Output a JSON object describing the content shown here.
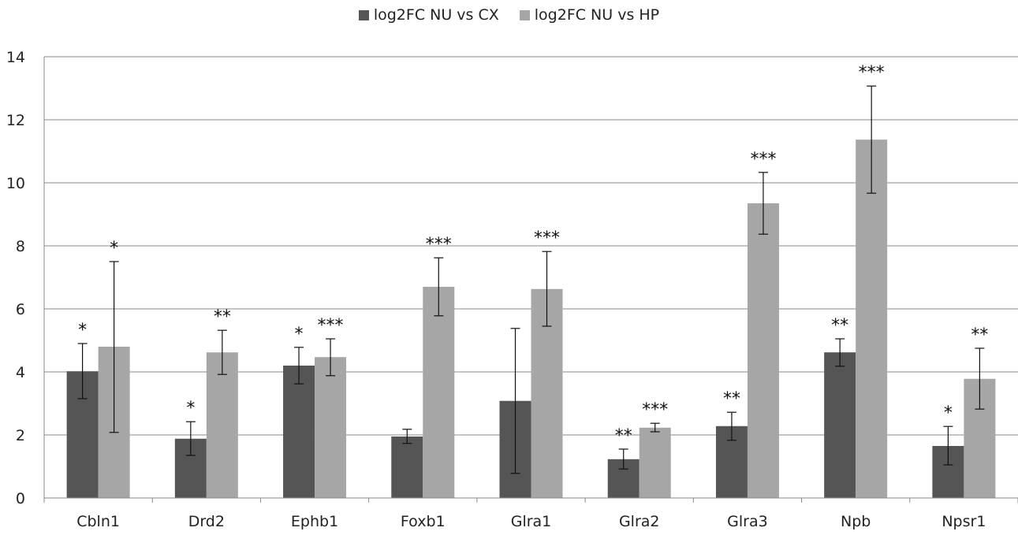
{
  "chart_data": {
    "type": "bar",
    "categories": [
      "Cbln1",
      "Drd2",
      "Ephb1",
      "Foxb1",
      "Glra1",
      "Glra2",
      "Glra3",
      "Npb",
      "Npsr1"
    ],
    "series": [
      {
        "name": "log2FC NU vs CX",
        "color": "#555555",
        "values": [
          4.02,
          1.88,
          4.2,
          1.95,
          3.08,
          1.23,
          2.28,
          4.62,
          1.65
        ],
        "error_low": [
          3.15,
          1.35,
          3.62,
          1.73,
          0.78,
          0.92,
          1.83,
          4.18,
          1.05
        ],
        "error_high": [
          4.9,
          2.42,
          4.78,
          2.18,
          5.38,
          1.55,
          2.72,
          5.05,
          2.27
        ],
        "significance": [
          "*",
          "*",
          "*",
          "",
          "",
          "**",
          "**",
          "**",
          "*"
        ]
      },
      {
        "name": "log2FC NU vs HP",
        "color": "#a6a6a6",
        "values": [
          4.8,
          4.62,
          4.47,
          6.7,
          6.63,
          2.23,
          9.35,
          11.37,
          3.78
        ],
        "error_low": [
          2.08,
          3.92,
          3.88,
          5.78,
          5.45,
          2.1,
          8.37,
          9.67,
          2.82
        ],
        "error_high": [
          7.5,
          5.32,
          5.05,
          7.62,
          7.82,
          2.37,
          10.33,
          13.07,
          4.75
        ],
        "significance": [
          "*",
          "**",
          "***",
          "***",
          "***",
          "***",
          "***",
          "***",
          "**"
        ]
      }
    ],
    "yticks": [
      "0",
      "2",
      "4",
      "6",
      "8",
      "10",
      "12",
      "14"
    ],
    "ylim": [
      0,
      14
    ],
    "grid": true,
    "legend_position": "top-center"
  }
}
